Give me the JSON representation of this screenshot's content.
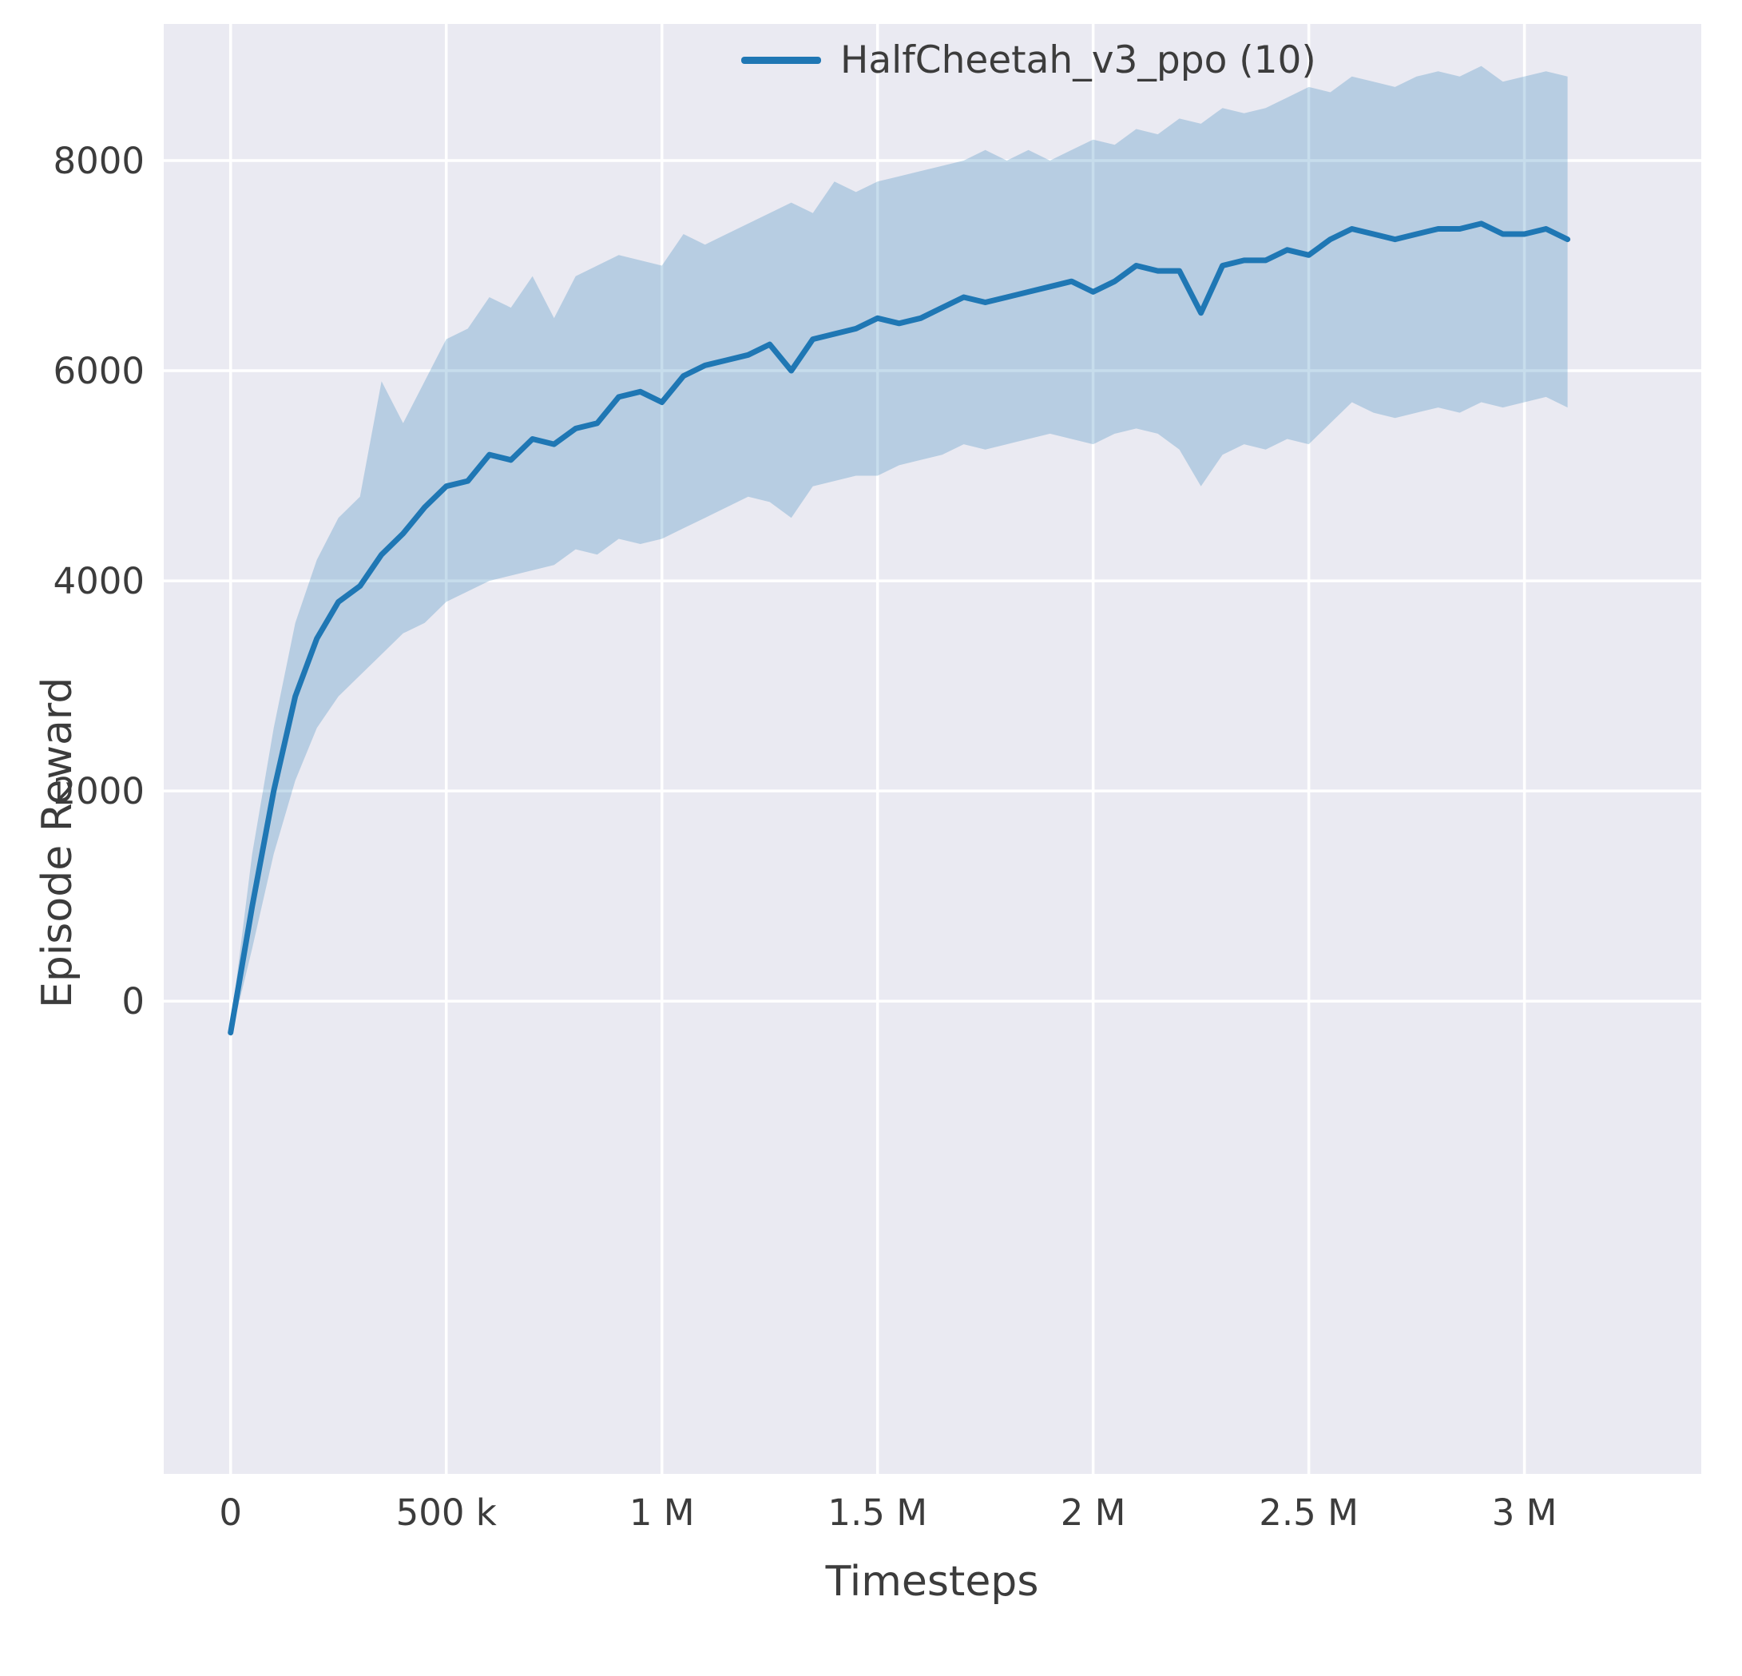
{
  "figure": {
    "bg": "#ffffff",
    "plot_bg": "#eaeaf2",
    "grid_color": "#ffffff",
    "text_color": "#3c3c3c",
    "accent": "#1f77b4"
  },
  "chart_data": {
    "type": "line",
    "title": "",
    "xlabel": "Timesteps",
    "ylabel": "Episode Reward",
    "grid": true,
    "legend_position": "upper center-right, no frame",
    "xlim": [
      -155000,
      3410000
    ],
    "ylim": [
      -4500,
      9300
    ],
    "x_ticks": [
      {
        "value": 0,
        "label": "0"
      },
      {
        "value": 500000,
        "label": "500 k"
      },
      {
        "value": 1000000,
        "label": "1 M"
      },
      {
        "value": 1500000,
        "label": "1.5 M"
      },
      {
        "value": 2000000,
        "label": "2 M"
      },
      {
        "value": 2500000,
        "label": "2.5 M"
      },
      {
        "value": 3000000,
        "label": "3 M"
      }
    ],
    "y_ticks": [
      {
        "value": 0,
        "label": "0"
      },
      {
        "value": 2000,
        "label": "2000"
      },
      {
        "value": 4000,
        "label": "4000"
      },
      {
        "value": 6000,
        "label": "6000"
      },
      {
        "value": 8000,
        "label": "8000"
      }
    ],
    "series": [
      {
        "name": "HalfCheetah_v3_ppo (10)",
        "color": "#1f77b4",
        "band_opacity": 0.25,
        "line_width": 7,
        "x": [
          0,
          50000,
          100000,
          150000,
          200000,
          250000,
          300000,
          350000,
          400000,
          450000,
          500000,
          550000,
          600000,
          650000,
          700000,
          750000,
          800000,
          850000,
          900000,
          950000,
          1000000,
          1050000,
          1100000,
          1150000,
          1200000,
          1250000,
          1300000,
          1350000,
          1400000,
          1450000,
          1500000,
          1550000,
          1600000,
          1650000,
          1700000,
          1750000,
          1800000,
          1850000,
          1900000,
          1950000,
          2000000,
          2050000,
          2100000,
          2150000,
          2200000,
          2250000,
          2300000,
          2350000,
          2400000,
          2450000,
          2500000,
          2550000,
          2600000,
          2650000,
          2700000,
          2750000,
          2800000,
          2850000,
          2900000,
          2950000,
          3000000,
          3050000,
          3100000
        ],
        "mean": [
          -300,
          900,
          2000,
          2900,
          3450,
          3800,
          3950,
          4250,
          4450,
          4700,
          4900,
          4950,
          5200,
          5150,
          5350,
          5300,
          5450,
          5500,
          5750,
          5800,
          5700,
          5950,
          6050,
          6100,
          6150,
          6250,
          6000,
          6300,
          6350,
          6400,
          6500,
          6450,
          6500,
          6600,
          6700,
          6650,
          6700,
          6750,
          6800,
          6850,
          6750,
          6850,
          7000,
          6950,
          6950,
          6550,
          7000,
          7050,
          7050,
          7150,
          7100,
          7250,
          7350,
          7300,
          7250,
          7300,
          7350,
          7350,
          7400,
          7300,
          7300,
          7350,
          7250
        ],
        "lower": [
          -350,
          500,
          1400,
          2100,
          2600,
          2900,
          3100,
          3300,
          3500,
          3600,
          3800,
          3900,
          4000,
          4050,
          4100,
          4150,
          4300,
          4250,
          4400,
          4350,
          4400,
          4500,
          4600,
          4700,
          4800,
          4750,
          4600,
          4900,
          4950,
          5000,
          5000,
          5100,
          5150,
          5200,
          5300,
          5250,
          5300,
          5350,
          5400,
          5350,
          5300,
          5400,
          5450,
          5400,
          5250,
          4900,
          5200,
          5300,
          5250,
          5350,
          5300,
          5500,
          5700,
          5600,
          5550,
          5600,
          5650,
          5600,
          5700,
          5650,
          5700,
          5750,
          5650
        ],
        "upper": [
          -250,
          1400,
          2600,
          3600,
          4200,
          4600,
          4800,
          5900,
          5500,
          5900,
          6300,
          6400,
          6700,
          6600,
          6900,
          6500,
          6900,
          7000,
          7100,
          7050,
          7000,
          7300,
          7200,
          7300,
          7400,
          7500,
          7600,
          7500,
          7800,
          7700,
          7800,
          7850,
          7900,
          7950,
          8000,
          8100,
          8000,
          8100,
          8000,
          8100,
          8200,
          8150,
          8300,
          8250,
          8400,
          8350,
          8500,
          8450,
          8500,
          8600,
          8700,
          8650,
          8800,
          8750,
          8700,
          8800,
          8850,
          8800,
          8900,
          8750,
          8800,
          8850,
          8800
        ]
      }
    ]
  }
}
